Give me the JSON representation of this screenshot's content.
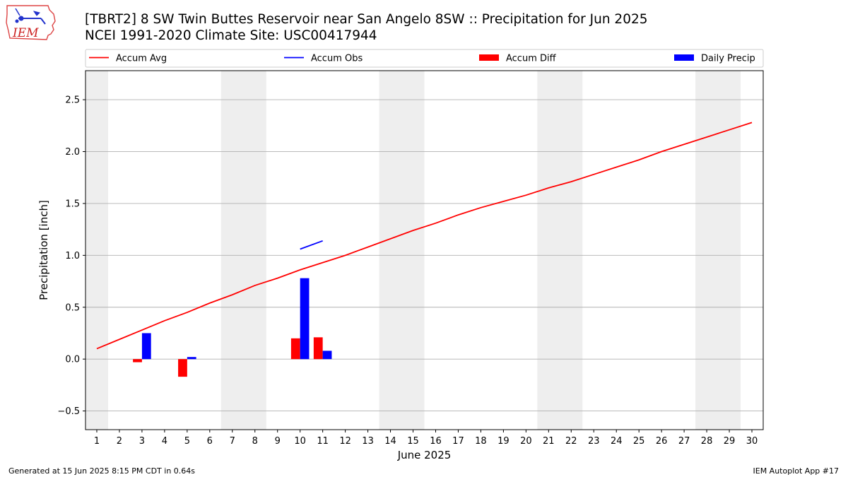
{
  "header": {
    "title_line1": "[TBRT2] 8 SW Twin Buttes Reservoir near San Angelo 8SW :: Precipitation for Jun 2025",
    "title_line2": "NCEI 1991-2020 Climate Site: USC00417944",
    "logo_text": "IEM"
  },
  "footer": {
    "left": "Generated at 15 Jun 2025 8:15 PM CDT in 0.64s",
    "right": "IEM Autoplot App #17"
  },
  "chart_data": {
    "type": "bar",
    "xlabel": "June 2025",
    "ylabel": "Precipitation [inch]",
    "xlim": [
      0.5,
      30.5
    ],
    "ylim": [
      -0.68,
      2.78
    ],
    "yticks": [
      -0.5,
      0.0,
      0.5,
      1.0,
      1.5,
      2.0,
      2.5
    ],
    "ytick_labels": [
      "−0.5",
      "0.0",
      "0.5",
      "1.0",
      "1.5",
      "2.0",
      "2.5"
    ],
    "xticks": [
      1,
      2,
      3,
      4,
      5,
      6,
      7,
      8,
      9,
      10,
      11,
      12,
      13,
      14,
      15,
      16,
      17,
      18,
      19,
      20,
      21,
      22,
      23,
      24,
      25,
      26,
      27,
      28,
      29,
      30
    ],
    "grid": "horizontal",
    "weekend_shading": [
      [
        0.5,
        1.5
      ],
      [
        6.5,
        8.5
      ],
      [
        13.5,
        15.5
      ],
      [
        20.5,
        22.5
      ],
      [
        27.5,
        29.5
      ]
    ],
    "legend": {
      "placement": "top",
      "entries": [
        {
          "label": "Accum Avg",
          "kind": "line",
          "color": "#ff0000"
        },
        {
          "label": "Accum Obs",
          "kind": "line",
          "color": "#0000ff"
        },
        {
          "label": "Accum Diff",
          "kind": "bar",
          "color": "#ff0000"
        },
        {
          "label": "Daily Precip",
          "kind": "bar",
          "color": "#0000ff"
        }
      ]
    },
    "series": [
      {
        "name": "Accum Avg",
        "kind": "line",
        "color": "#ff0000",
        "x": [
          1,
          2,
          3,
          4,
          5,
          6,
          7,
          8,
          9,
          10,
          11,
          12,
          13,
          14,
          15,
          16,
          17,
          18,
          19,
          20,
          21,
          22,
          23,
          24,
          25,
          26,
          27,
          28,
          29,
          30
        ],
        "values": [
          0.1,
          0.19,
          0.28,
          0.37,
          0.45,
          0.54,
          0.62,
          0.71,
          0.78,
          0.86,
          0.93,
          1.0,
          1.08,
          1.16,
          1.24,
          1.31,
          1.39,
          1.46,
          1.52,
          1.58,
          1.65,
          1.71,
          1.78,
          1.85,
          1.92,
          2.0,
          2.07,
          2.14,
          2.21,
          2.28
        ]
      },
      {
        "name": "Accum Obs",
        "kind": "line",
        "color": "#0000ff",
        "x": [
          10,
          11
        ],
        "values": [
          1.06,
          1.14
        ]
      },
      {
        "name": "Accum Diff",
        "kind": "bar",
        "color": "#ff0000",
        "x": [
          3,
          5,
          10,
          11
        ],
        "values": [
          -0.03,
          -0.17,
          0.2,
          0.21
        ]
      },
      {
        "name": "Daily Precip",
        "kind": "bar",
        "color": "#0000ff",
        "x": [
          3,
          5,
          10,
          11
        ],
        "values": [
          0.25,
          0.02,
          0.78,
          0.08
        ]
      }
    ]
  }
}
